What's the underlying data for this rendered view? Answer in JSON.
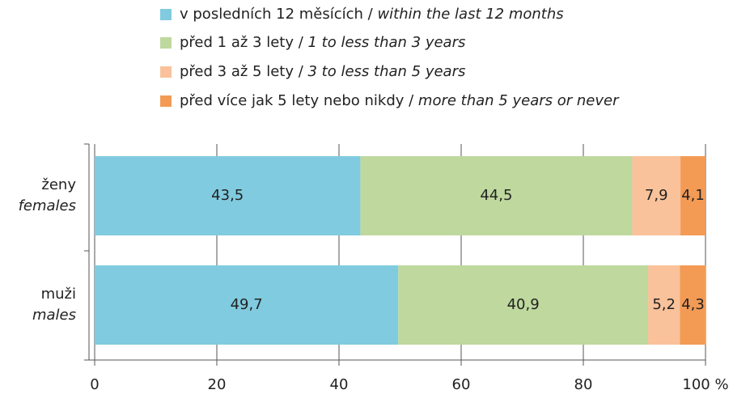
{
  "chart_data": {
    "type": "stacked-bar-horizontal",
    "categories": [
      [
        "ženy",
        "females"
      ],
      [
        "muži",
        "males"
      ]
    ],
    "series": [
      {
        "name": "v posledních 12 měsících / within the last 12 months",
        "color": "#80cbdf",
        "values": [
          43.5,
          49.7
        ],
        "value_labels": [
          "43,5",
          "49,7"
        ]
      },
      {
        "name": "před 1 až 3 lety / 1 to less than 3 years",
        "color": "#bed89e",
        "values": [
          44.5,
          40.9
        ],
        "value_labels": [
          "44,5",
          "40,9"
        ]
      },
      {
        "name": "před 3 až 5 lety / 3 to less than 5 years",
        "color": "#f9c29a",
        "values": [
          7.9,
          5.2
        ],
        "value_labels": [
          "7,9",
          "5,2"
        ]
      },
      {
        "name": "před více jak 5 lety nebo nikdy / more than 5 years or never",
        "color": "#f39b55",
        "values": [
          4.1,
          4.3
        ],
        "value_labels": [
          "4,1",
          "4,3"
        ]
      }
    ],
    "xlim": [
      0,
      100
    ],
    "xticks": [
      0,
      20,
      40,
      60,
      80,
      {
        "value": 100,
        "label": "100 %"
      }
    ],
    "grid": true
  }
}
